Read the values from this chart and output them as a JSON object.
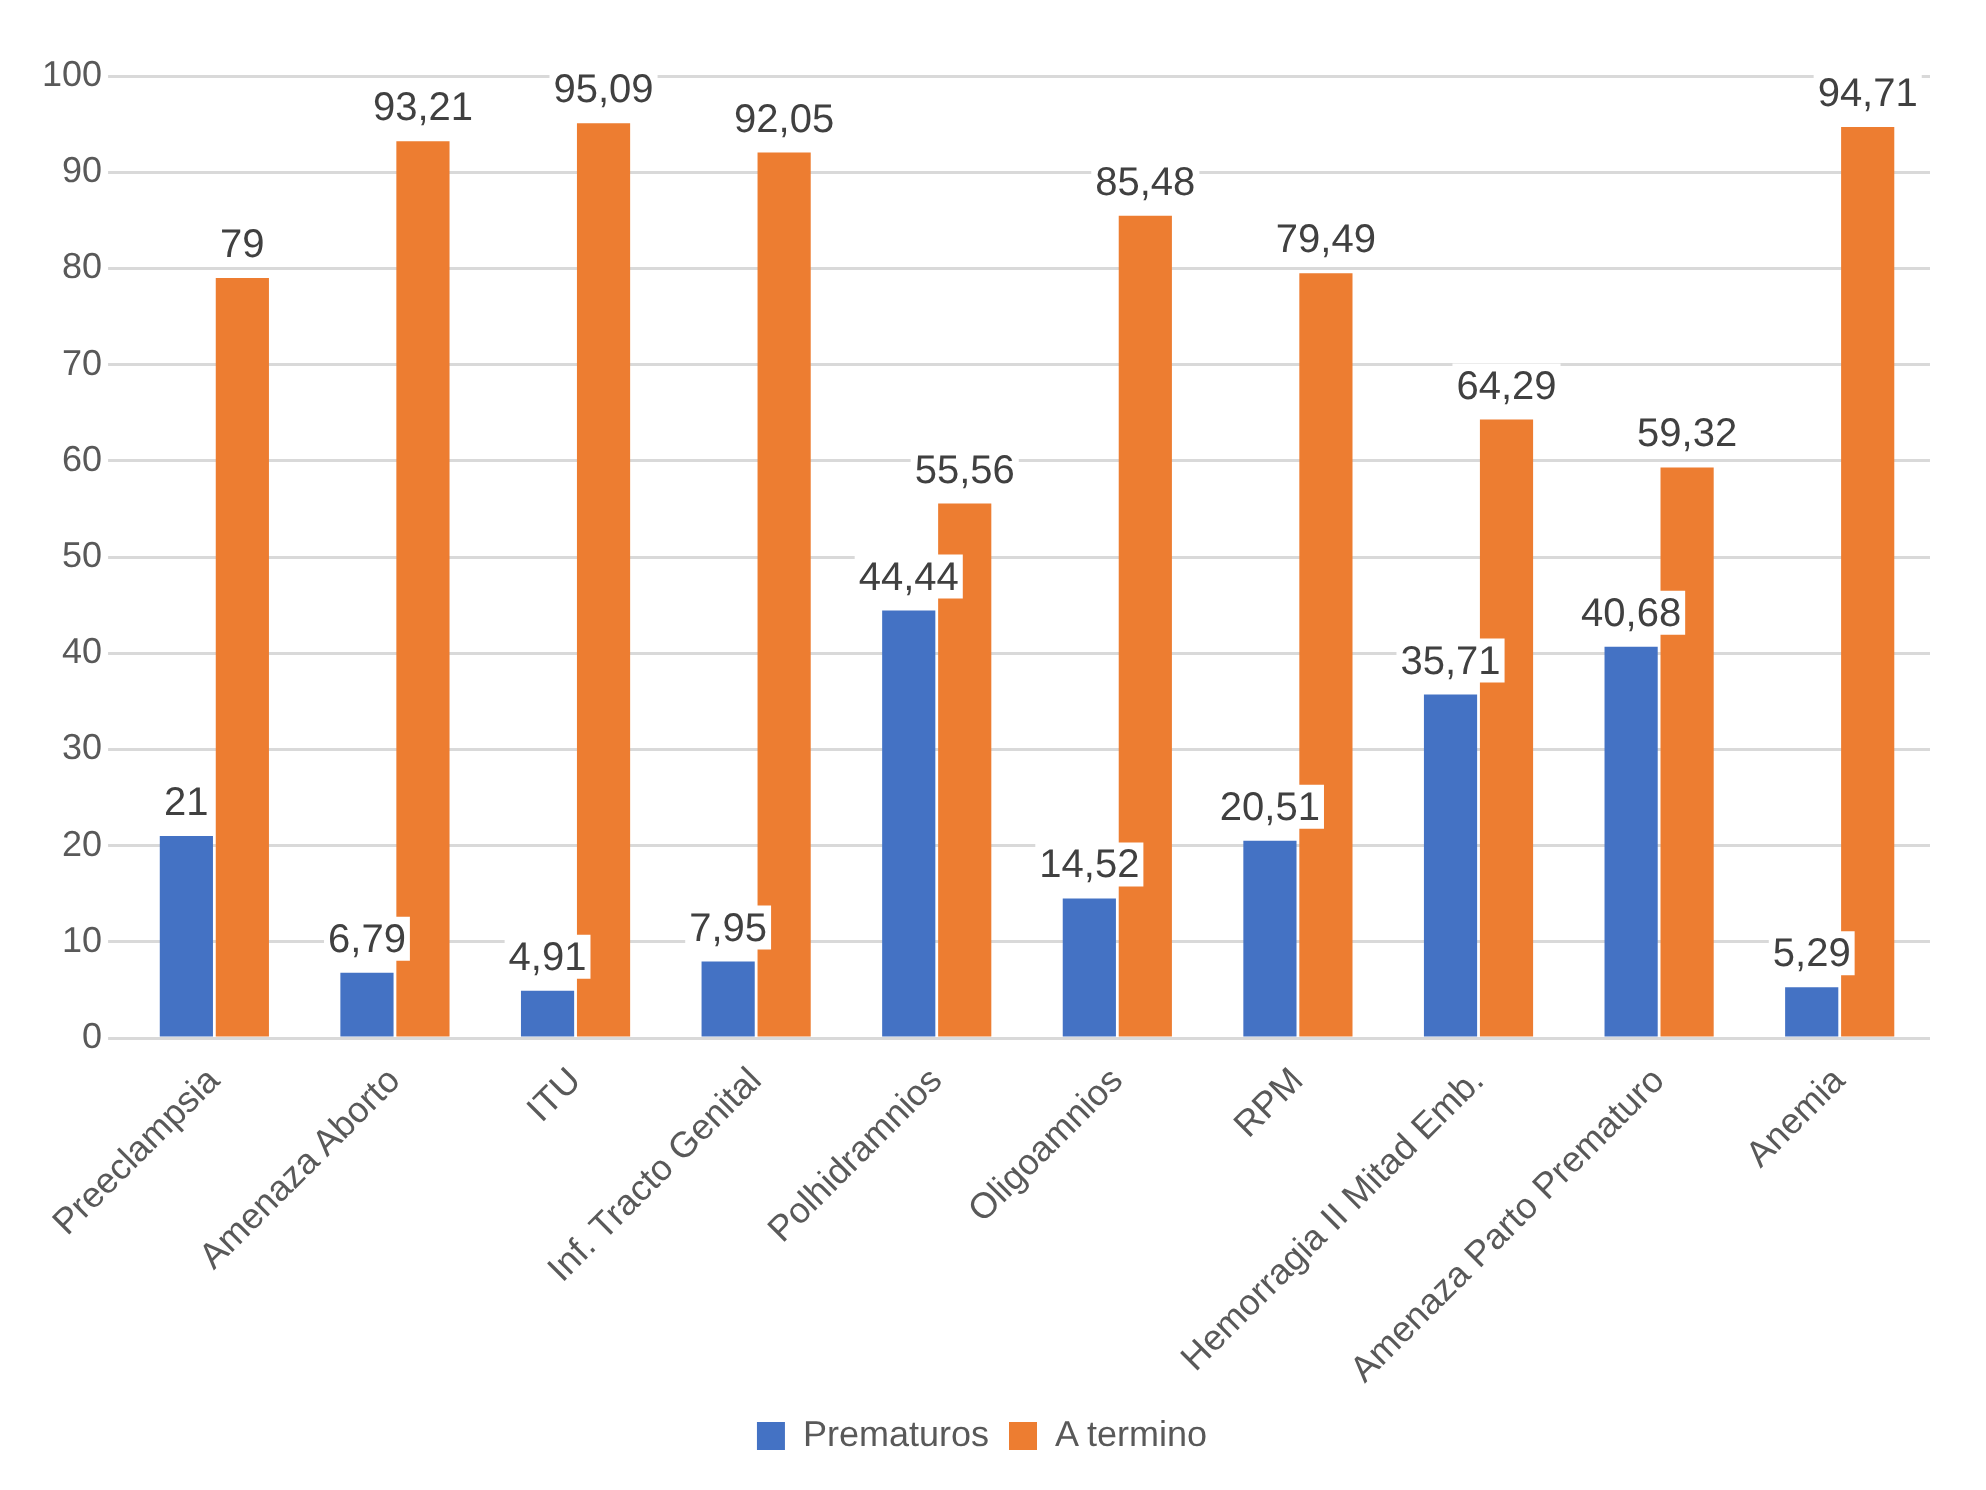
{
  "chart_data": {
    "type": "bar",
    "categories": [
      "Preeclampsia",
      "Amenaza Aborto",
      "ITU",
      "Inf. Tracto Genital",
      "Polhidramnios",
      "Oligoamnios",
      "RPM",
      "Hemorragia II Mitad Emb.",
      "Amenaza Parto Prematuro",
      "Anemia"
    ],
    "series": [
      {
        "name": "Prematuros",
        "color": "#4472c4",
        "values": [
          21,
          6.79,
          4.91,
          7.95,
          44.44,
          14.52,
          20.51,
          35.71,
          40.68,
          5.29
        ],
        "value_labels": [
          "21",
          "6,79",
          "4,91",
          "7,95",
          "44,44",
          "14,52",
          "20,51",
          "35,71",
          "40,68",
          "5,29"
        ]
      },
      {
        "name": "A termino",
        "color": "#ed7d31",
        "values": [
          79,
          93.21,
          95.09,
          92.05,
          55.56,
          85.48,
          79.49,
          64.29,
          59.32,
          94.71
        ],
        "value_labels": [
          "79",
          "93,21",
          "95,09",
          "92,05",
          "55,56",
          "85,48",
          "79,49",
          "64,29",
          "59,32",
          "94,71"
        ]
      }
    ],
    "ylim": [
      0,
      100
    ],
    "yticks": [
      0,
      10,
      20,
      30,
      40,
      50,
      60,
      70,
      80,
      90,
      100
    ],
    "grid": "y",
    "legend": "bottom"
  }
}
